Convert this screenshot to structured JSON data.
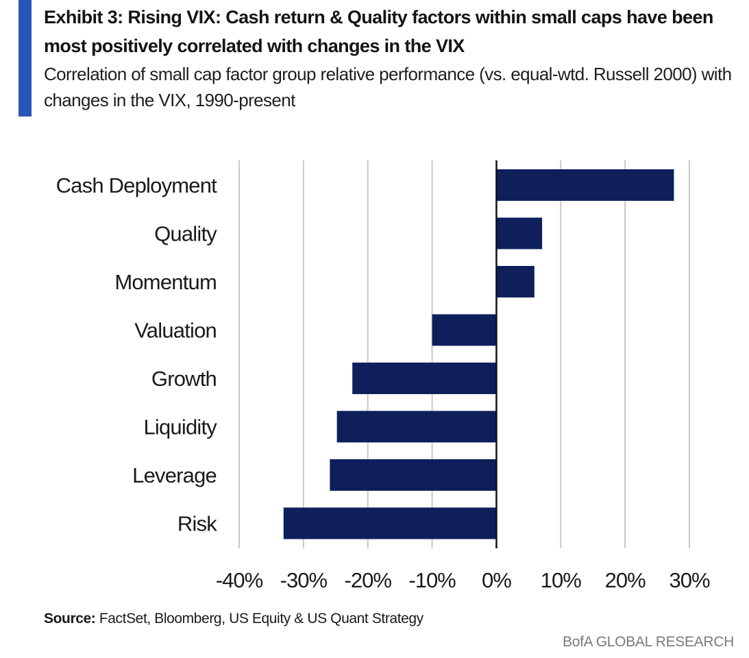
{
  "header": {
    "title": "Exhibit 3: Rising VIX: Cash return & Quality factors within small caps have been most positively correlated with changes in the VIX",
    "subtitle": "Correlation of small cap factor group relative performance (vs. equal-wtd. Russell 2000) with changes in the VIX, 1990-present"
  },
  "footer": {
    "source_label": "Source:",
    "source_text": " FactSet, Bloomberg, US Equity & US Quant Strategy",
    "brand": "BofA GLOBAL RESEARCH"
  },
  "colors": {
    "accent": "#2a55b9",
    "bar": "#0e1f5c",
    "grid": "#c8c8c8"
  },
  "chart_data": {
    "type": "bar",
    "orientation": "horizontal",
    "categories": [
      "Cash Deployment",
      "Quality",
      "Momentum",
      "Valuation",
      "Growth",
      "Liquidity",
      "Leverage",
      "Risk"
    ],
    "values": [
      27.6,
      7.1,
      5.9,
      -10.0,
      -22.4,
      -24.8,
      -25.9,
      -33.1
    ],
    "value_unit": "%",
    "xlim": [
      -40,
      30
    ],
    "xticks": [
      -40,
      -30,
      -20,
      -10,
      0,
      10,
      20,
      30
    ],
    "xtick_labels": [
      "-40%",
      "-30%",
      "-20%",
      "-10%",
      "0%",
      "10%",
      "20%",
      "30%"
    ],
    "grid": "vertical",
    "legend": "none"
  }
}
